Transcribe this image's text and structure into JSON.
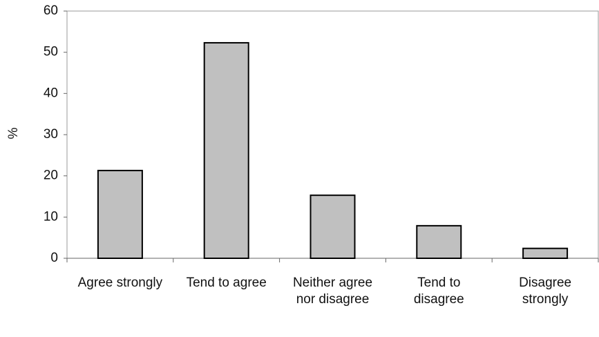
{
  "chart_data": {
    "type": "bar",
    "y_label": "%",
    "categories": [
      "Agree strongly",
      "Tend to agree",
      "Neither agree nor disagree",
      "Tend to disagree",
      "Disagree strongly"
    ],
    "values": [
      21.3,
      52.3,
      15.3,
      7.9,
      2.4
    ],
    "color": "#c0c0c0",
    "ylim": [
      0,
      60
    ],
    "yticks": [
      0,
      10,
      20,
      30,
      40,
      50,
      60
    ],
    "grid": false
  }
}
